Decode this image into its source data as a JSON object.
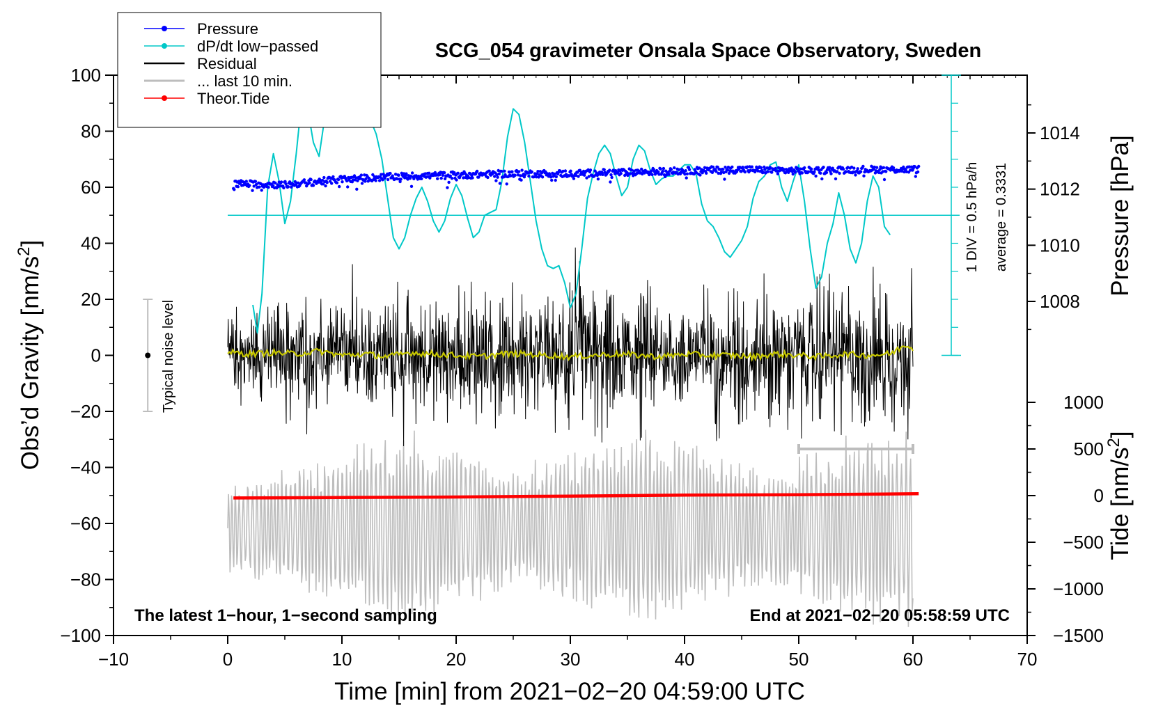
{
  "chart_data": {
    "type": "line",
    "title": "SCG_054 gravimeter Onsala Space Observatory, Sweden",
    "xlabel": "Time [min] from 2021−02−20 04:59:00 UTC",
    "xlim": [
      -10,
      70
    ],
    "x_ticks": [
      -10,
      0,
      10,
      20,
      30,
      40,
      50,
      60,
      70
    ],
    "x_tick_labels": [
      "−10",
      "0",
      "10",
      "20",
      "30",
      "40",
      "50",
      "60",
      "70"
    ],
    "left_axis": {
      "label_main": "Obs’d Gravity [nm/s",
      "label_sup": "2",
      "label_end": "]",
      "range": [
        -100,
        100
      ],
      "ticks": [
        100,
        80,
        60,
        40,
        20,
        0,
        -20,
        -40,
        -60,
        -80,
        -100
      ],
      "tick_labels": [
        "100",
        "80",
        "60",
        "40",
        "20",
        "0",
        "−20",
        "−40",
        "−60",
        "−80",
        "−100"
      ]
    },
    "pressure_axis": {
      "label": "Pressure [hPa]",
      "ticks": [
        1014,
        1012,
        1010,
        1008
      ],
      "tick_labels": [
        "1014",
        "1012",
        "1010",
        "1008"
      ],
      "range": [
        1006,
        1016
      ]
    },
    "tide_axis": {
      "label_main": "Tide [nm/s",
      "label_sup": "2",
      "label_end": "]",
      "ticks": [
        1000,
        500,
        0,
        -500,
        -1000,
        -1500
      ],
      "tick_labels": [
        "1000",
        "500",
        "0",
        "−500",
        "−1000",
        "−1500"
      ],
      "range": [
        -1500,
        1000
      ]
    },
    "legend": {
      "position": "top-left",
      "entries": [
        {
          "label": "Pressure",
          "color": "#0000ff",
          "marker": true
        },
        {
          "label": "dP/dt low−passed",
          "color": "#00c8c8",
          "marker": true
        },
        {
          "label": "Residual",
          "color": "#000000",
          "marker": false
        },
        {
          "label": "... last 10 min.",
          "color": "#bdbdbd",
          "marker": false
        },
        {
          "label": "Theor.Tide",
          "color": "#ff0000",
          "marker": true
        }
      ]
    },
    "noise_bar": {
      "label": "Typical noise level",
      "x": -7,
      "center": 0,
      "low": -20,
      "high": 20
    },
    "dpdt_scale": {
      "div_label": "1 DIV = 0.5 hPa/h",
      "average_label": "average = 0.3331",
      "baseline_gravity": 50
    },
    "footer_left": "The latest 1−hour, 1−second sampling",
    "footer_right": "End at 2021−02−20 05:58:59 UTC",
    "last10_bar": {
      "x_start": 50,
      "x_end": 60,
      "tide": 500
    },
    "series": [
      {
        "name": "Pressure",
        "color": "#0000ff",
        "axis": "pressure",
        "x": [
          0.5,
          5,
          10,
          15,
          20,
          25,
          30,
          35,
          40,
          45,
          50,
          55,
          60.5
        ],
        "values": [
          1012.2,
          1012.15,
          1012.35,
          1012.45,
          1012.5,
          1012.55,
          1012.55,
          1012.6,
          1012.65,
          1012.7,
          1012.65,
          1012.7,
          1012.7
        ]
      },
      {
        "name": "dP/dt low−passed",
        "color": "#00c8c8",
        "axis": "gravity",
        "x": [
          2.2,
          2.6,
          3.0,
          3.5,
          4.0,
          4.5,
          5.0,
          5.5,
          6.0,
          6.5,
          7.0,
          7.5,
          8.0,
          8.5,
          9.0,
          9.5,
          10.0,
          10.5,
          11.0,
          11.5,
          12.0,
          12.5,
          13.0,
          13.5,
          14.0,
          14.5,
          15.0,
          15.5,
          16.0,
          16.5,
          17.0,
          17.5,
          18.0,
          18.5,
          19.0,
          19.5,
          20.0,
          20.5,
          21.0,
          21.5,
          22.0,
          22.5,
          23.0,
          23.5,
          24.0,
          24.5,
          25.0,
          25.5,
          26.0,
          26.5,
          27.0,
          27.5,
          28.0,
          28.5,
          29.0,
          29.5,
          30.0,
          30.5,
          31.0,
          31.5,
          32.0,
          32.5,
          33.0,
          33.5,
          34.0,
          34.5,
          35.0,
          35.5,
          36.0,
          36.5,
          37.0,
          37.5,
          38.0,
          38.5,
          39.0,
          39.5,
          40.0,
          40.5,
          41.0,
          41.5,
          42.0,
          42.5,
          43.0,
          43.5,
          44.0,
          44.5,
          45.0,
          45.5,
          46.0,
          46.5,
          47.0,
          47.5,
          48.0,
          48.5,
          49.0,
          49.5,
          50.0,
          50.5,
          51.0,
          51.5,
          52.0,
          52.5,
          53.0,
          53.5,
          54.0,
          54.5,
          55.0,
          55.5,
          56.0,
          56.5,
          57.0,
          57.5,
          58.0
        ],
        "values": [
          18,
          8,
          22,
          60,
          72,
          62,
          47,
          55,
          72,
          92,
          88,
          76,
          71,
          85,
          101,
          103,
          96,
          84,
          82,
          83,
          86,
          84,
          79,
          70,
          56,
          42,
          38,
          42,
          50,
          56,
          60,
          55,
          48,
          44,
          48,
          56,
          61,
          57,
          49,
          42,
          44,
          50,
          51,
          52,
          62,
          78,
          88,
          86,
          76,
          62,
          48,
          38,
          32,
          31,
          32,
          26,
          17,
          22,
          38,
          56,
          65,
          72,
          75,
          72,
          64,
          57,
          60,
          70,
          75,
          73,
          66,
          61,
          63,
          64,
          64,
          66,
          68,
          68,
          65,
          54,
          48,
          46,
          42,
          37,
          35,
          38,
          41,
          46,
          56,
          62,
          64,
          68,
          69,
          60,
          55,
          62,
          68,
          55,
          38,
          24,
          28,
          40,
          47,
          58,
          50,
          38,
          33,
          40,
          55,
          64,
          60,
          46,
          43
        ]
      },
      {
        "name": "Residual",
        "color": "#000000",
        "axis": "gravity",
        "x_range": [
          0,
          60
        ],
        "amplitude_envelope": [
          14,
          16,
          18,
          15,
          16,
          20,
          22,
          18,
          16,
          18,
          21,
          19,
          20,
          22,
          24,
          23,
          20,
          18,
          16,
          18,
          20,
          22,
          24,
          22,
          20,
          18,
          17,
          19,
          22,
          24,
          26,
          24,
          22,
          20,
          18,
          19,
          21,
          20,
          18,
          17,
          18,
          20,
          21,
          22,
          23,
          22,
          21,
          20,
          19,
          20,
          21,
          22,
          23,
          24,
          22,
          20,
          22,
          24,
          23,
          22,
          22
        ]
      },
      {
        "name": "... last 10 min.",
        "color": "#bdbdbd",
        "axis": "tide",
        "x_range": [
          0,
          60
        ],
        "amplitude_envelope": [
          600,
          700,
          800,
          900,
          1000,
          1100,
          1200,
          1300,
          1200,
          1100,
          1000,
          900,
          800,
          900,
          1000,
          1100,
          1200,
          1300,
          1200,
          1100,
          1000,
          900,
          800,
          900,
          1000,
          1100,
          1200,
          1300,
          1300,
          1200
        ]
      },
      {
        "name": "Residual low−passed",
        "color": "#c8c800",
        "axis": "gravity",
        "x": [
          0,
          2,
          4,
          6,
          8,
          10,
          12,
          14,
          16,
          18,
          20,
          22,
          24,
          26,
          28,
          30,
          32,
          34,
          36,
          38,
          40,
          42,
          44,
          46,
          48,
          50,
          52,
          54,
          56,
          58,
          59.5,
          60
        ],
        "values": [
          1,
          0.5,
          1,
          0.5,
          1.5,
          0,
          0.5,
          -0.5,
          1,
          0.5,
          0,
          -0.5,
          0.5,
          0.5,
          0,
          -0.5,
          0,
          0.5,
          0,
          -0.5,
          0.5,
          0,
          0,
          -0.5,
          0.5,
          0,
          -0.5,
          0.5,
          0,
          0.5,
          4,
          2
        ]
      },
      {
        "name": "Theor.Tide",
        "color": "#ff0000",
        "axis": "tide",
        "x": [
          0.5,
          10,
          20,
          30,
          40,
          50,
          60.5
        ],
        "values": [
          -25,
          -20,
          -15,
          -5,
          5,
          10,
          20
        ]
      }
    ]
  }
}
